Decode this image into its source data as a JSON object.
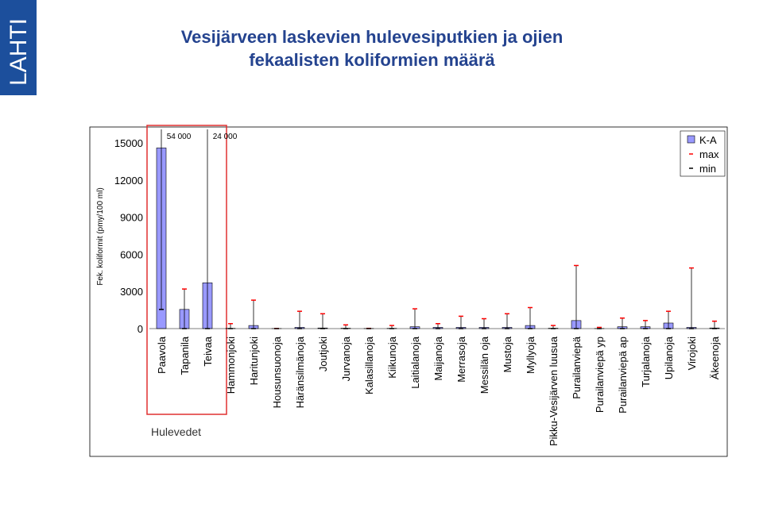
{
  "logo": "LAHTI",
  "chart_data": {
    "type": "bar",
    "title": [
      "Vesijärveen laskevien hulevesiputkien ja ojien",
      "fekaalisten koliformien määrä"
    ],
    "y_label": "Fek. koliformit (pmy/100 ml)",
    "annotation": "Hulevedet",
    "categories": [
      "Paavola",
      "Tapanila",
      "Teivaa",
      "Hammonjoki",
      "Haritunjoki",
      "Housunsuonoja",
      "Häränsilmänoja",
      "Joutjoki",
      "Jurvanoja",
      "Kalasillanoja",
      "Kiikunoja",
      "Laitialanoja",
      "Maijanoja",
      "Merrasoja",
      "Messilän oja",
      "Mustoja",
      "Myllyoja",
      "Pikku-Vesijärven luusua",
      "Purailanviepä",
      "Purailanviepä yp",
      "Purailanviepä ap",
      "Turjalanoja",
      "Upilanoja",
      "Virojoki",
      "Äkeenoja"
    ],
    "series": [
      {
        "name": "K-A",
        "color": "#9999ff",
        "values": [
          14600,
          1550,
          3700,
          20,
          250,
          5,
          100,
          50,
          30,
          10,
          20,
          150,
          100,
          100,
          100,
          100,
          250,
          30,
          650,
          10,
          150,
          150,
          450,
          100,
          50
        ]
      },
      {
        "name": "max",
        "color": "#ff0000",
        "values": [
          54000,
          3200,
          24000,
          400,
          2300,
          10,
          1400,
          1200,
          300,
          20,
          250,
          1600,
          400,
          1000,
          800,
          1200,
          1700,
          250,
          5100,
          100,
          850,
          650,
          1400,
          4900,
          600
        ],
        "value_labels": [
          "54 000",
          null,
          "24 000",
          null,
          null,
          null,
          null,
          null,
          null,
          null,
          null,
          null,
          null,
          null,
          null,
          null,
          null,
          null,
          null,
          null,
          null,
          null,
          null,
          null,
          null
        ]
      },
      {
        "name": "min",
        "color": "#000000",
        "values": [
          1550,
          0,
          0,
          0,
          0,
          0,
          0,
          0,
          0,
          0,
          0,
          0,
          0,
          0,
          0,
          0,
          0,
          0,
          0,
          0,
          0,
          0,
          0,
          0,
          0
        ]
      }
    ],
    "ylim": [
      0,
      16100
    ],
    "yticks": [
      0,
      3000,
      6000,
      9000,
      12000,
      15000
    ],
    "grid": false,
    "legend": "top-right"
  }
}
